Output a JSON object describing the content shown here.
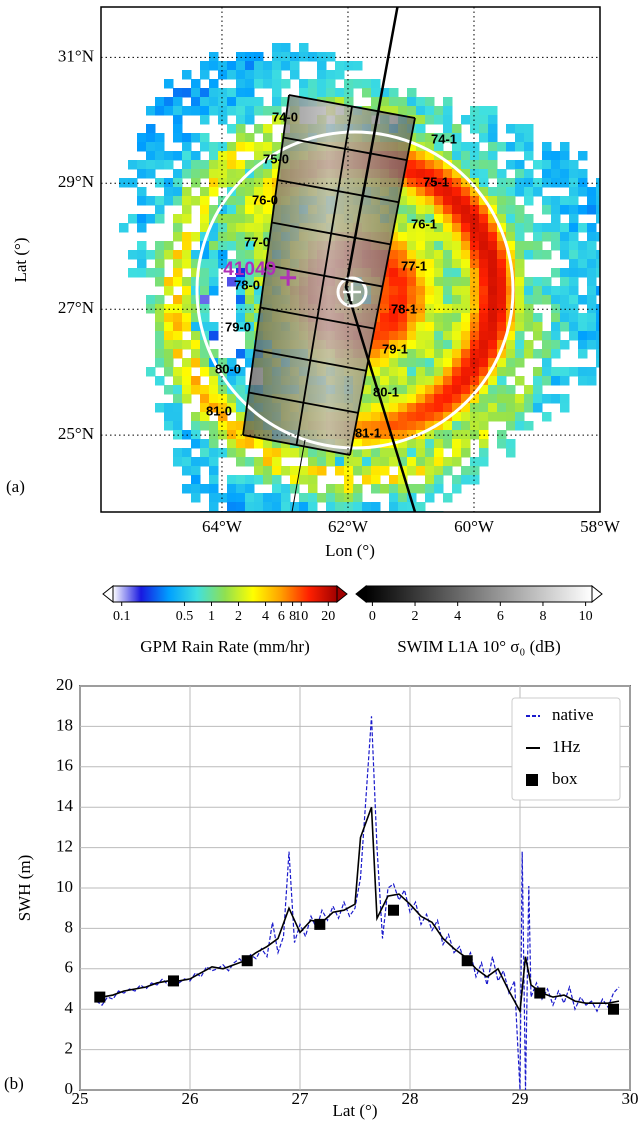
{
  "chart_data": [
    {
      "type": "map",
      "panel_label": "(a)",
      "xlabel": "Lon (°)",
      "ylabel": "Lat (°)",
      "xlim": [
        -65.92,
        -58.0
      ],
      "ylim": [
        23.78,
        31.8
      ],
      "xticks": [
        {
          "value": -64,
          "label": "64°W"
        },
        {
          "value": -62,
          "label": "62°W"
        },
        {
          "value": -60,
          "label": "60°W"
        },
        {
          "value": -58,
          "label": "58°W"
        }
      ],
      "yticks": [
        {
          "value": 25,
          "label": "25°N"
        },
        {
          "value": 27,
          "label": "27°N"
        },
        {
          "value": 29,
          "label": "29°N"
        },
        {
          "value": 31,
          "label": "31°N"
        }
      ],
      "grid": true,
      "station": {
        "label": "41049",
        "lon": -62.95,
        "lat": 27.5,
        "color": "#b030b8"
      },
      "box_labels": [
        "74-0",
        "74-1",
        "75-0",
        "75-1",
        "76-0",
        "76-1",
        "77-0",
        "77-1",
        "78-0",
        "78-1",
        "79-0",
        "79-1",
        "80-0",
        "80-1",
        "81-0",
        "81-1"
      ],
      "colorbars": [
        {
          "label": "GPM Rain Rate (mm/hr)",
          "log": true,
          "clim": [
            0.08,
            25
          ],
          "ticks": [
            0.1,
            0.5,
            1,
            2,
            4,
            6,
            8,
            10,
            20
          ],
          "colors": [
            "#ffffff",
            "#1818e0",
            "#00a0ff",
            "#40e0e0",
            "#90e050",
            "#ffff00",
            "#ffa000",
            "#ff2000",
            "#a00000"
          ]
        },
        {
          "label": "SWIM L1A 10° σ₀ (dB)",
          "log": false,
          "clim": [
            -0.3,
            10.3
          ],
          "ticks": [
            0,
            2,
            4,
            6,
            8,
            10
          ],
          "colors": [
            "#000000",
            "#ffffff"
          ]
        }
      ]
    },
    {
      "type": "line",
      "panel_label": "(b)",
      "xlabel": "Lat (°)",
      "ylabel": "SWH (m)",
      "xlim": [
        25,
        30
      ],
      "ylim": [
        0,
        20
      ],
      "xticks": [
        25,
        26,
        27,
        28,
        29,
        30
      ],
      "yticks": [
        0,
        2,
        4,
        6,
        8,
        10,
        12,
        14,
        16,
        18,
        20
      ],
      "grid": true,
      "legend": "upper right",
      "series": [
        {
          "name": "native",
          "color": "#1a1acc",
          "style": "dashed",
          "x": [
            25.15,
            25.2,
            25.25,
            25.3,
            25.35,
            25.4,
            25.45,
            25.5,
            25.55,
            25.6,
            25.65,
            25.7,
            25.75,
            25.8,
            25.85,
            25.9,
            25.95,
            26.0,
            26.05,
            26.1,
            26.15,
            26.2,
            26.25,
            26.3,
            26.35,
            26.4,
            26.45,
            26.5,
            26.55,
            26.6,
            26.65,
            26.7,
            26.75,
            26.8,
            26.85,
            26.9,
            26.95,
            27.0,
            27.05,
            27.1,
            27.15,
            27.2,
            27.25,
            27.3,
            27.35,
            27.4,
            27.45,
            27.5,
            27.55,
            27.6,
            27.65,
            27.7,
            27.75,
            27.8,
            27.85,
            27.9,
            27.95,
            28.0,
            28.05,
            28.1,
            28.15,
            28.2,
            28.25,
            28.3,
            28.35,
            28.4,
            28.45,
            28.5,
            28.55,
            28.6,
            28.65,
            28.7,
            28.75,
            28.8,
            28.85,
            28.9,
            28.95,
            29.0,
            29.02,
            29.05,
            29.08,
            29.1,
            29.15,
            29.2,
            29.25,
            29.3,
            29.35,
            29.4,
            29.45,
            29.5,
            29.55,
            29.6,
            29.65,
            29.7,
            29.75,
            29.8,
            29.85,
            29.9
          ],
          "values": [
            4.4,
            4.2,
            4.6,
            4.5,
            4.9,
            4.8,
            5.0,
            4.9,
            5.2,
            5.0,
            5.3,
            5.2,
            5.5,
            5.2,
            5.6,
            5.3,
            5.5,
            5.4,
            5.8,
            5.6,
            6.1,
            5.9,
            6.0,
            6.2,
            5.9,
            6.3,
            6.5,
            6.2,
            6.7,
            6.5,
            7.0,
            6.6,
            8.3,
            6.8,
            7.6,
            11.8,
            7.3,
            8.2,
            7.6,
            8.6,
            8.0,
            8.9,
            8.4,
            9.1,
            8.5,
            9.3,
            8.6,
            9.0,
            10.5,
            14.5,
            18.5,
            12.0,
            7.5,
            10.0,
            10.2,
            9.4,
            9.9,
            8.8,
            9.3,
            8.2,
            8.7,
            7.9,
            8.4,
            7.2,
            7.7,
            6.8,
            7.1,
            6.3,
            6.8,
            5.6,
            6.3,
            5.2,
            6.6,
            5.4,
            5.9,
            4.8,
            5.4,
            0,
            11.8,
            0,
            10.1,
            4.6,
            5.3,
            4.5,
            5.0,
            4.2,
            4.9,
            4.3,
            5.1,
            4.0,
            4.6,
            4.2,
            4.4,
            3.9,
            4.5,
            4.1,
            4.8,
            5.1
          ]
        },
        {
          "name": "1Hz",
          "color": "#000000",
          "style": "solid",
          "x": [
            25.2,
            25.3,
            25.4,
            25.5,
            25.6,
            25.7,
            25.8,
            25.9,
            26.0,
            26.1,
            26.2,
            26.3,
            26.4,
            26.5,
            26.6,
            26.7,
            26.8,
            26.9,
            27.0,
            27.1,
            27.2,
            27.3,
            27.4,
            27.5,
            27.55,
            27.65,
            27.7,
            27.8,
            27.9,
            28.0,
            28.1,
            28.2,
            28.3,
            28.4,
            28.5,
            28.6,
            28.7,
            28.8,
            28.9,
            29.0,
            29.05,
            29.1,
            29.2,
            29.3,
            29.4,
            29.5,
            29.6,
            29.7,
            29.8,
            29.9
          ],
          "values": [
            4.6,
            4.7,
            4.9,
            5.0,
            5.1,
            5.3,
            5.4,
            5.4,
            5.5,
            5.8,
            6.1,
            6.0,
            6.2,
            6.4,
            6.8,
            7.1,
            7.5,
            9.0,
            7.8,
            8.4,
            8.3,
            8.8,
            8.9,
            9.2,
            12.5,
            14.0,
            8.5,
            9.6,
            9.7,
            9.2,
            8.6,
            8.3,
            7.5,
            7.0,
            6.6,
            6.0,
            5.6,
            6.0,
            4.9,
            3.9,
            6.6,
            5.2,
            4.8,
            4.6,
            4.7,
            4.4,
            4.3,
            4.3,
            4.3,
            4.4
          ]
        },
        {
          "name": "box",
          "color": "#000000",
          "style": "square",
          "x": [
            25.18,
            25.85,
            26.52,
            27.18,
            27.85,
            28.52,
            29.18,
            29.85
          ],
          "values": [
            4.6,
            5.4,
            6.4,
            8.2,
            8.9,
            6.4,
            4.8,
            4.0
          ]
        }
      ]
    }
  ]
}
